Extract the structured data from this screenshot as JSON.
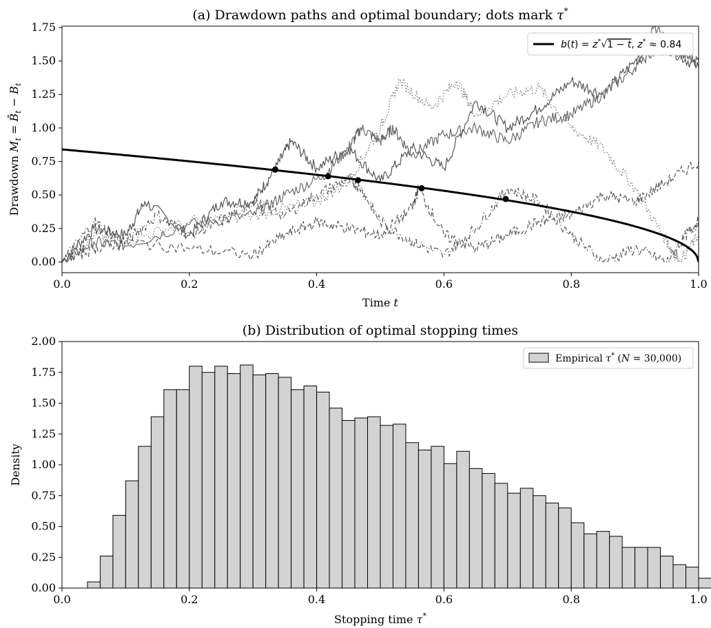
{
  "chart_data": [
    {
      "type": "line",
      "title": "(a) Drawdown paths and optimal boundary; dots mark τ*",
      "xlabel": "Time t",
      "ylabel": "Drawdown M_t = B̄_t − B_t",
      "xlim": [
        0,
        1
      ],
      "ylim": [
        -0.08,
        1.76
      ],
      "x_ticks": [
        "0.0",
        "0.2",
        "0.4",
        "0.6",
        "0.8",
        "1.0"
      ],
      "y_ticks": [
        "0.00",
        "0.25",
        "0.50",
        "0.75",
        "1.00",
        "1.25",
        "1.50",
        "1.75"
      ],
      "legend": {
        "placement": "upper right",
        "entries": [
          "b(t) = z*√(1 − t), z* ≈ 0.84"
        ]
      },
      "boundary": {
        "name": "b(t) = z*√(1 − t), z* ≈ 0.84",
        "z_star": 0.84,
        "color": "#000000"
      },
      "stopping_points": [
        {
          "x": 0.335,
          "y": 0.69
        },
        {
          "x": 0.418,
          "y": 0.64
        },
        {
          "x": 0.465,
          "y": 0.61
        },
        {
          "x": 0.565,
          "y": 0.55
        },
        {
          "x": 0.697,
          "y": 0.47
        }
      ],
      "series": [
        {
          "style": "solid",
          "color": "#555555",
          "x": [
            0,
            0.05,
            0.1,
            0.13,
            0.2,
            0.25,
            0.3,
            0.333,
            0.36,
            0.4,
            0.45,
            0.5,
            0.55,
            0.6,
            0.65,
            0.7,
            0.75,
            0.8,
            0.85,
            0.9,
            0.95,
            1.0
          ],
          "y": [
            0,
            0.25,
            0.2,
            0.45,
            0.2,
            0.45,
            0.45,
            0.68,
            0.9,
            0.7,
            0.85,
            0.6,
            0.85,
            0.7,
            1.2,
            1.0,
            1.15,
            1.35,
            1.25,
            1.5,
            1.6,
            1.45
          ]
        },
        {
          "style": "solid",
          "color": "#6a6a6a",
          "x": [
            0,
            0.05,
            0.1,
            0.2,
            0.3,
            0.35,
            0.41,
            0.45,
            0.47,
            0.5,
            0.52,
            0.55,
            0.6,
            0.65,
            0.7,
            0.75,
            0.8,
            0.85,
            0.9,
            0.93,
            0.97,
            1.0
          ],
          "y": [
            0,
            0.15,
            0.12,
            0.28,
            0.35,
            0.5,
            0.64,
            0.85,
            1.0,
            0.9,
            1.0,
            0.8,
            0.95,
            1.0,
            0.9,
            1.05,
            1.1,
            1.25,
            1.45,
            1.75,
            1.55,
            1.5
          ]
        },
        {
          "style": "dotted",
          "color": "#6a6a6a",
          "x": [
            0,
            0.05,
            0.1,
            0.2,
            0.3,
            0.4,
            0.45,
            0.5,
            0.53,
            0.58,
            0.62,
            0.65,
            0.7,
            0.75,
            0.8,
            0.85,
            0.9,
            0.95,
            0.97,
            1.0
          ],
          "y": [
            0,
            0.2,
            0.15,
            0.3,
            0.35,
            0.45,
            0.6,
            1.0,
            1.35,
            1.15,
            1.35,
            1.1,
            1.25,
            1.3,
            1.0,
            0.85,
            0.55,
            0.15,
            0.0,
            0.2
          ]
        },
        {
          "style": "dashdot",
          "color": "#555555",
          "x": [
            0,
            0.05,
            0.1,
            0.15,
            0.2,
            0.25,
            0.3,
            0.35,
            0.4,
            0.45,
            0.47,
            0.5,
            0.55,
            0.6,
            0.65,
            0.7,
            0.75,
            0.8,
            0.85,
            0.9,
            0.95,
            0.98,
            1.0
          ],
          "y": [
            0,
            0.3,
            0.15,
            0.35,
            0.2,
            0.3,
            0.45,
            0.35,
            0.5,
            0.62,
            0.55,
            0.3,
            0.15,
            0.05,
            0.25,
            0.55,
            0.45,
            0.2,
            0.0,
            0.1,
            0.0,
            0.2,
            0.3
          ]
        },
        {
          "style": "dashed",
          "color": "#555555",
          "x": [
            0,
            0.05,
            0.1,
            0.2,
            0.3,
            0.35,
            0.4,
            0.45,
            0.5,
            0.55,
            0.56,
            0.6,
            0.65,
            0.7,
            0.75,
            0.8,
            0.85,
            0.9,
            0.95,
            1.0
          ],
          "y": [
            0,
            0.1,
            0.15,
            0.1,
            0.05,
            0.2,
            0.3,
            0.25,
            0.2,
            0.4,
            0.55,
            0.2,
            0.1,
            0.2,
            0.3,
            0.35,
            0.5,
            0.45,
            0.6,
            0.75
          ]
        }
      ]
    },
    {
      "type": "bar",
      "title": "(b) Distribution of optimal stopping times",
      "xlabel": "Stopping time τ*",
      "ylabel": "Density",
      "xlim": [
        0,
        1
      ],
      "ylim": [
        0,
        2
      ],
      "x_ticks": [
        "0.0",
        "0.2",
        "0.4",
        "0.6",
        "0.8",
        "1.0"
      ],
      "y_ticks": [
        "0.00",
        "0.25",
        "0.50",
        "0.75",
        "1.00",
        "1.25",
        "1.50",
        "1.75",
        "2.00"
      ],
      "legend": {
        "placement": "upper right",
        "entries": [
          "Empirical τ* (N = 30,000)"
        ]
      },
      "bin_start": 0.04,
      "bin_width": 0.02,
      "values": [
        0.05,
        0.26,
        0.59,
        0.87,
        1.15,
        1.39,
        1.61,
        1.61,
        1.8,
        1.75,
        1.8,
        1.74,
        1.81,
        1.73,
        1.74,
        1.71,
        1.61,
        1.64,
        1.59,
        1.46,
        1.36,
        1.38,
        1.39,
        1.32,
        1.33,
        1.18,
        1.12,
        1.15,
        1.01,
        1.11,
        0.97,
        0.93,
        0.85,
        0.77,
        0.81,
        0.75,
        0.69,
        0.65,
        0.53,
        0.44,
        0.46,
        0.42,
        0.33,
        0.33,
        0.33,
        0.26,
        0.19,
        0.17,
        0.08
      ],
      "colors": {
        "fill": "#d3d3d3",
        "edge": "#000000"
      }
    }
  ]
}
